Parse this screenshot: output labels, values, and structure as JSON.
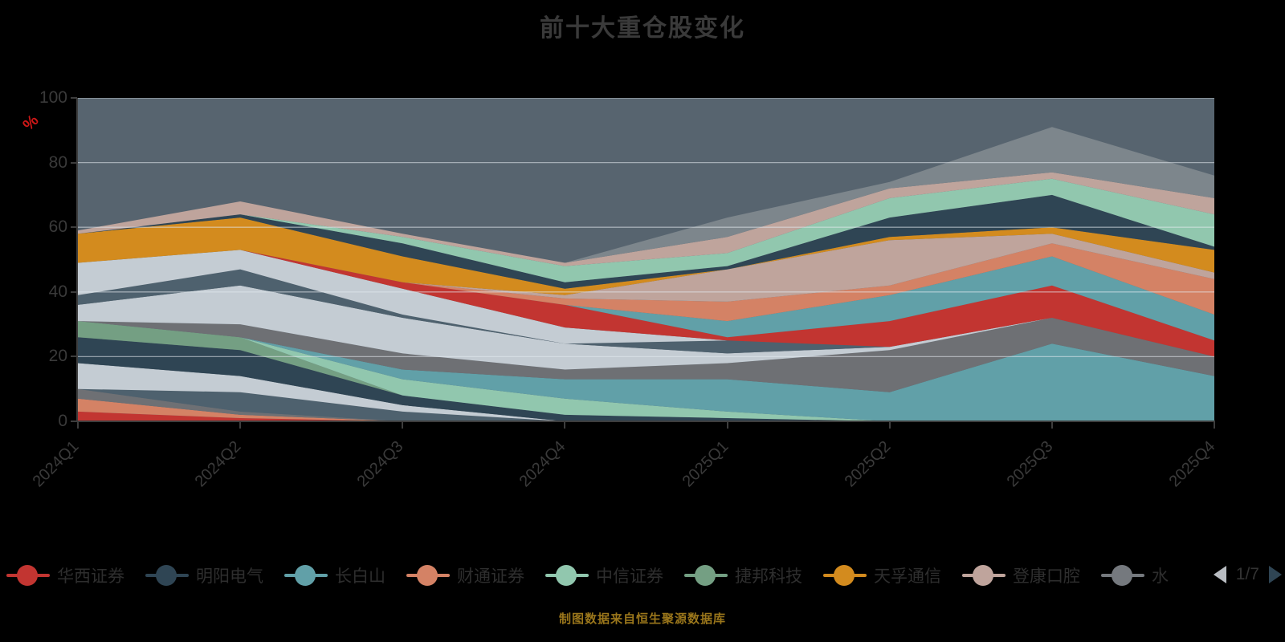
{
  "title": "前十大重仓股变化",
  "colors": {
    "title": "#3a3a3a",
    "axis_label": "#3a3a3a",
    "unit_label": "#cf1717",
    "caption": "#9a761b",
    "plot_background": "#57646f",
    "grid_line": "rgba(228,233,238,0.55)",
    "legend_text": "#2e2e2e",
    "page_text": "#333333",
    "prev_arrow": "#b9bdc2",
    "next_arrow": "#2f4554"
  },
  "y_axis": {
    "unit_label": "%",
    "ticks": [
      0,
      20,
      40,
      60,
      80,
      100
    ]
  },
  "x_axis": {
    "categories": [
      "2024Q1",
      "2024Q2",
      "2024Q3",
      "2024Q4",
      "2025Q1",
      "2025Q2",
      "2025Q3",
      "2025Q4"
    ]
  },
  "legend": {
    "items": [
      {
        "label": "华西证券",
        "color": "#c23531"
      },
      {
        "label": "明阳电气",
        "color": "#2f4554"
      },
      {
        "label": "长白山",
        "color": "#61a0a8"
      },
      {
        "label": "财通证券",
        "color": "#d48265"
      },
      {
        "label": "中信证券",
        "color": "#91c7ae"
      },
      {
        "label": "捷邦科技",
        "color": "#749f83"
      },
      {
        "label": "天孚通信",
        "color": "#d38b1e"
      },
      {
        "label": "登康口腔",
        "color": "#bfa49c"
      },
      {
        "label": "水",
        "color": "#75797e"
      }
    ],
    "pagination": {
      "page_text": "1/7",
      "prev_icon": "left-triangle",
      "next_icon": "right-triangle"
    }
  },
  "caption": "制图数据来自恒生聚源数据库",
  "chart_data": {
    "type": "area",
    "stacked": true,
    "title": "前十大重仓股变化",
    "ylabel": "%",
    "ylim": [
      0,
      100
    ],
    "grid": true,
    "legend_position": "bottom",
    "categories": [
      "2024Q1",
      "2024Q2",
      "2024Q3",
      "2024Q4",
      "2025Q1",
      "2025Q2",
      "2025Q3",
      "2025Q4"
    ],
    "series": [
      {
        "name": "华西证券",
        "color": "#c23531",
        "values": [
          3,
          1,
          0,
          0,
          0,
          0,
          0,
          0
        ]
      },
      {
        "name": "财通证券",
        "color": "#d48265",
        "values": [
          4,
          1,
          0,
          0,
          0,
          0,
          0,
          0
        ]
      },
      {
        "name": "",
        "color": "#6e7074",
        "values": [
          3,
          1,
          0,
          0,
          0,
          0,
          0,
          0
        ]
      },
      {
        "name": "",
        "color": "#4e616e",
        "values": [
          0,
          6,
          3,
          0,
          0,
          0,
          0,
          0
        ]
      },
      {
        "name": "",
        "color": "#c4ccd3",
        "values": [
          8,
          5,
          2,
          0,
          0,
          0,
          0,
          0
        ]
      },
      {
        "name": "明阳电气",
        "color": "#2f4554",
        "values": [
          8,
          8,
          3,
          2,
          1,
          0,
          0,
          0
        ]
      },
      {
        "name": "捷邦科技",
        "color": "#749f83",
        "values": [
          5,
          4,
          0,
          0,
          0,
          0,
          0,
          0
        ]
      },
      {
        "name": "中信证券",
        "color": "#91c7ae",
        "values": [
          0,
          0,
          5,
          5,
          2,
          0,
          0,
          0
        ]
      },
      {
        "name": "长白山",
        "color": "#61a0a8",
        "values": [
          0,
          0,
          3,
          6,
          10,
          9,
          24,
          14
        ]
      },
      {
        "name": "",
        "color": "#6e7074",
        "values": [
          0,
          4,
          5,
          3,
          5,
          13,
          8,
          6
        ]
      },
      {
        "name": "",
        "color": "#c4ccd3",
        "values": [
          5,
          12,
          11,
          8,
          3,
          1,
          0,
          0
        ]
      },
      {
        "name": "",
        "color": "#4e616e",
        "values": [
          3,
          5,
          1,
          0,
          4,
          0,
          0,
          0
        ]
      },
      {
        "name": "",
        "color": "#c4ccd3",
        "values": [
          10,
          6,
          8,
          5,
          0,
          0,
          0,
          0
        ]
      },
      {
        "name": "",
        "color": "#c23531",
        "values": [
          0,
          0,
          2,
          7,
          1,
          8,
          10,
          5
        ]
      },
      {
        "name": "",
        "color": "#61a0a8",
        "values": [
          0,
          0,
          0,
          0,
          5,
          8,
          9,
          8
        ]
      },
      {
        "name": "",
        "color": "#d48265",
        "values": [
          0,
          0,
          0,
          2,
          6,
          3,
          4,
          11
        ]
      },
      {
        "name": "",
        "color": "#bfa49c",
        "values": [
          0,
          0,
          0,
          1,
          10,
          14,
          3,
          2
        ]
      },
      {
        "name": "天孚通信",
        "color": "#d38b1e",
        "values": [
          9,
          10,
          8,
          2,
          0,
          1,
          2,
          7
        ]
      },
      {
        "name": "",
        "color": "#2f4554",
        "values": [
          0,
          1,
          4,
          2,
          1,
          6,
          10,
          1
        ]
      },
      {
        "name": "",
        "color": "#91c7ae",
        "values": [
          0,
          0,
          2,
          5,
          4,
          6,
          5,
          10
        ]
      },
      {
        "name": "登康口腔",
        "color": "#bfa49c",
        "values": [
          1,
          4,
          1,
          1,
          5,
          3,
          2,
          5
        ]
      },
      {
        "name": "水",
        "color": "#7d868c",
        "values": [
          0,
          0,
          0,
          0,
          6,
          2,
          14,
          7
        ]
      }
    ]
  }
}
